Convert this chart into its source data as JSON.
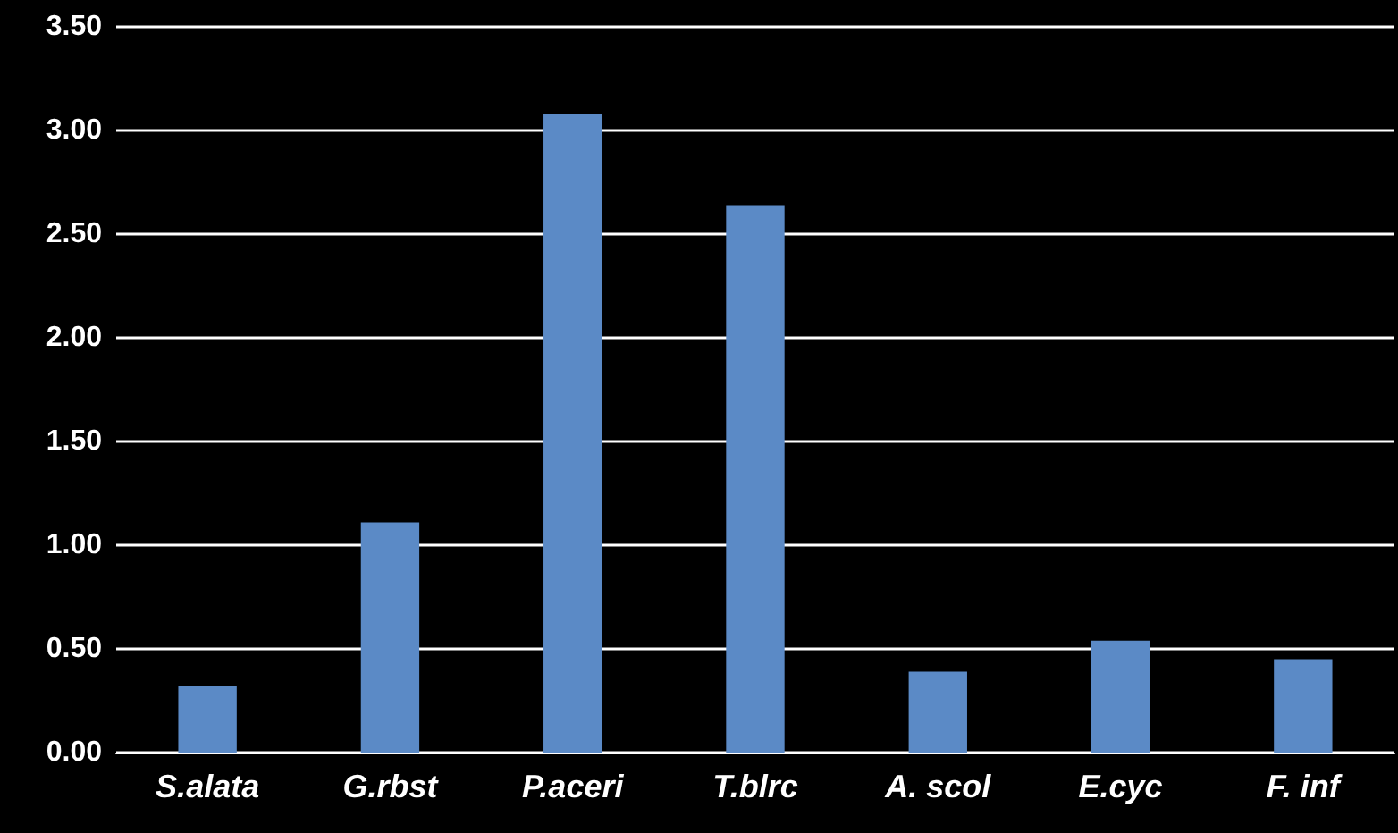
{
  "chart_data": {
    "type": "bar",
    "categories": [
      "S.alata",
      "G.rbst",
      "P.aceri",
      "T.blrc",
      "A. scol",
      "E.cyc",
      "F. inf"
    ],
    "values": [
      0.32,
      1.11,
      3.08,
      2.64,
      0.39,
      0.54,
      0.45
    ],
    "color": "#5b8ac6",
    "ylim": [
      0,
      3.5
    ],
    "yticks": [
      {
        "value": 0,
        "label": "0.00"
      },
      {
        "value": 0.5,
        "label": "0.50"
      },
      {
        "value": 1,
        "label": "1.00"
      },
      {
        "value": 1.5,
        "label": "1.50"
      },
      {
        "value": 2,
        "label": "2.00"
      },
      {
        "value": 2.5,
        "label": "2.50"
      },
      {
        "value": 3,
        "label": "3.00"
      },
      {
        "value": 3.5,
        "label": "3.50"
      }
    ],
    "grid": "y"
  }
}
